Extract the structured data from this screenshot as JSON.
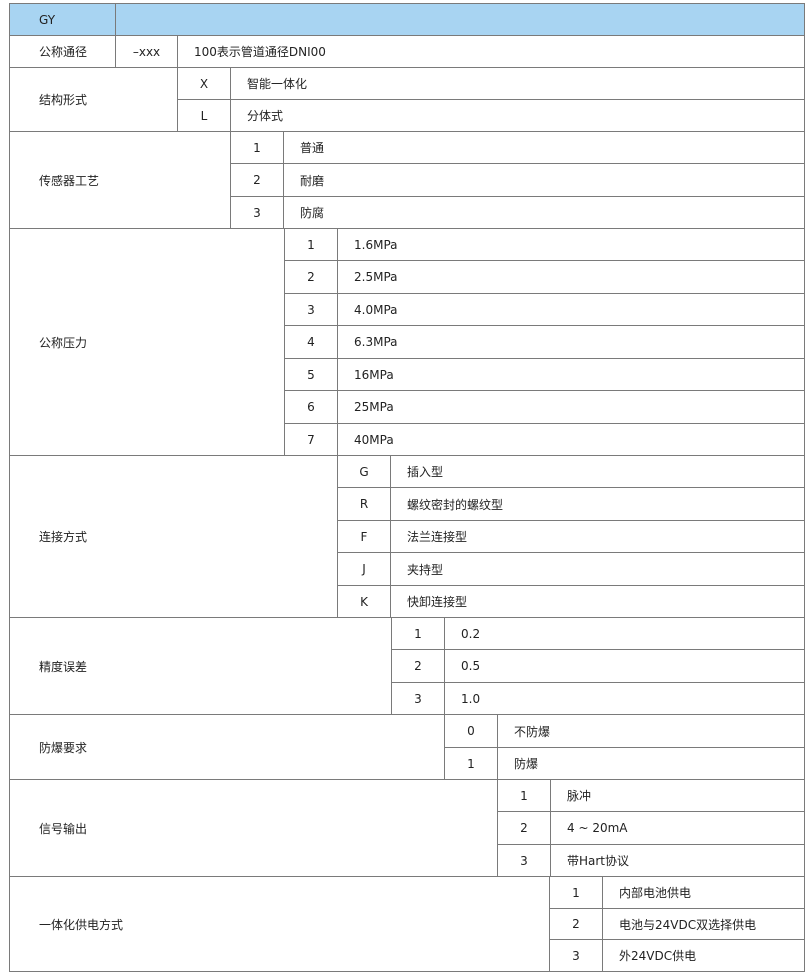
{
  "header": {
    "code": "GY",
    "header_color": "#a8d4f2"
  },
  "nominal_diameter": {
    "label": "公称通径",
    "code": "–xxx",
    "description": "100表示管道通径DNI00"
  },
  "sections": [
    {
      "label": "结构形式",
      "options": [
        {
          "code": "X",
          "text": "智能一体化"
        },
        {
          "code": "L",
          "text": "分体式"
        }
      ]
    },
    {
      "label": "传感器工艺",
      "options": [
        {
          "code": "1",
          "text": "普通"
        },
        {
          "code": "2",
          "text": "耐磨"
        },
        {
          "code": "3",
          "text": "防腐"
        }
      ]
    },
    {
      "label": "公称压力",
      "options": [
        {
          "code": "1",
          "text": "1.6MPa"
        },
        {
          "code": "2",
          "text": "2.5MPa"
        },
        {
          "code": "3",
          "text": "4.0MPa"
        },
        {
          "code": "4",
          "text": "6.3MPa"
        },
        {
          "code": "5",
          "text": "16MPa"
        },
        {
          "code": "6",
          "text": "25MPa"
        },
        {
          "code": "7",
          "text": "40MPa"
        }
      ]
    },
    {
      "label": "连接方式",
      "options": [
        {
          "code": "G",
          "text": "插入型"
        },
        {
          "code": "R",
          "text": "螺纹密封的螺纹型"
        },
        {
          "code": "F",
          "text": "法兰连接型"
        },
        {
          "code": "J",
          "text": "夹持型"
        },
        {
          "code": "K",
          "text": "快卸连接型"
        }
      ]
    },
    {
      "label": "精度误差",
      "options": [
        {
          "code": "1",
          "text": "0.2"
        },
        {
          "code": "2",
          "text": "0.5"
        },
        {
          "code": "3",
          "text": "1.0"
        }
      ]
    },
    {
      "label": "防爆要求",
      "options": [
        {
          "code": "0",
          "text": "不防爆"
        },
        {
          "code": "1",
          "text": "防爆"
        }
      ]
    },
    {
      "label": "信号输出",
      "options": [
        {
          "code": "1",
          "text": "脉冲"
        },
        {
          "code": "2",
          "text": "4 ~ 20mA"
        },
        {
          "code": "3",
          "text": "带Hart协议"
        }
      ]
    },
    {
      "label": "一体化供电方式",
      "options": [
        {
          "code": "1",
          "text": "内部电池供电"
        },
        {
          "code": "2",
          "text": "电池与24VDC双选择供电"
        },
        {
          "code": "3",
          "text": "外24VDC供电"
        }
      ]
    }
  ]
}
